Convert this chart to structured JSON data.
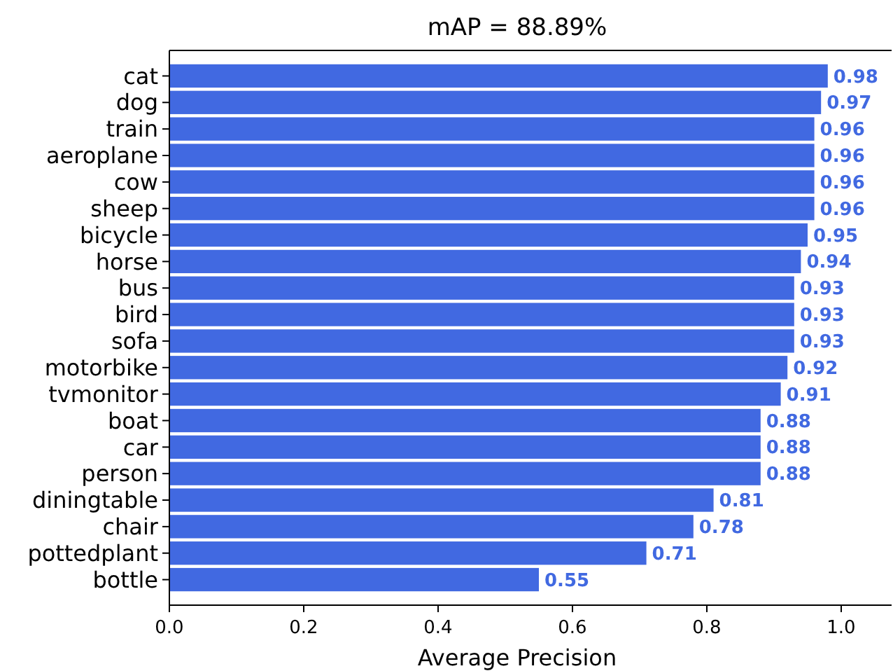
{
  "chart_data": {
    "type": "bar",
    "orientation": "horizontal",
    "title": "mAP = 88.89%",
    "xlabel": "Average Precision",
    "categories": [
      "cat",
      "dog",
      "train",
      "aeroplane",
      "cow",
      "sheep",
      "bicycle",
      "horse",
      "bus",
      "bird",
      "sofa",
      "motorbike",
      "tvmonitor",
      "boat",
      "car",
      "person",
      "diningtable",
      "chair",
      "pottedplant",
      "bottle"
    ],
    "values": [
      0.98,
      0.97,
      0.96,
      0.96,
      0.96,
      0.96,
      0.95,
      0.94,
      0.93,
      0.93,
      0.93,
      0.92,
      0.91,
      0.88,
      0.88,
      0.88,
      0.81,
      0.78,
      0.71,
      0.55
    ],
    "color": "#4169e1",
    "data_labels": true,
    "xlim": [
      0,
      1.075
    ],
    "xticks": [
      {
        "value": 0,
        "label": "0.0"
      },
      {
        "value": 0.2,
        "label": "0.2"
      },
      {
        "value": 0.4,
        "label": "0.4"
      },
      {
        "value": 0.6,
        "label": "0.6"
      },
      {
        "value": 0.8,
        "label": "0.8"
      },
      {
        "value": 1,
        "label": "1.0"
      }
    ],
    "grid": false
  }
}
